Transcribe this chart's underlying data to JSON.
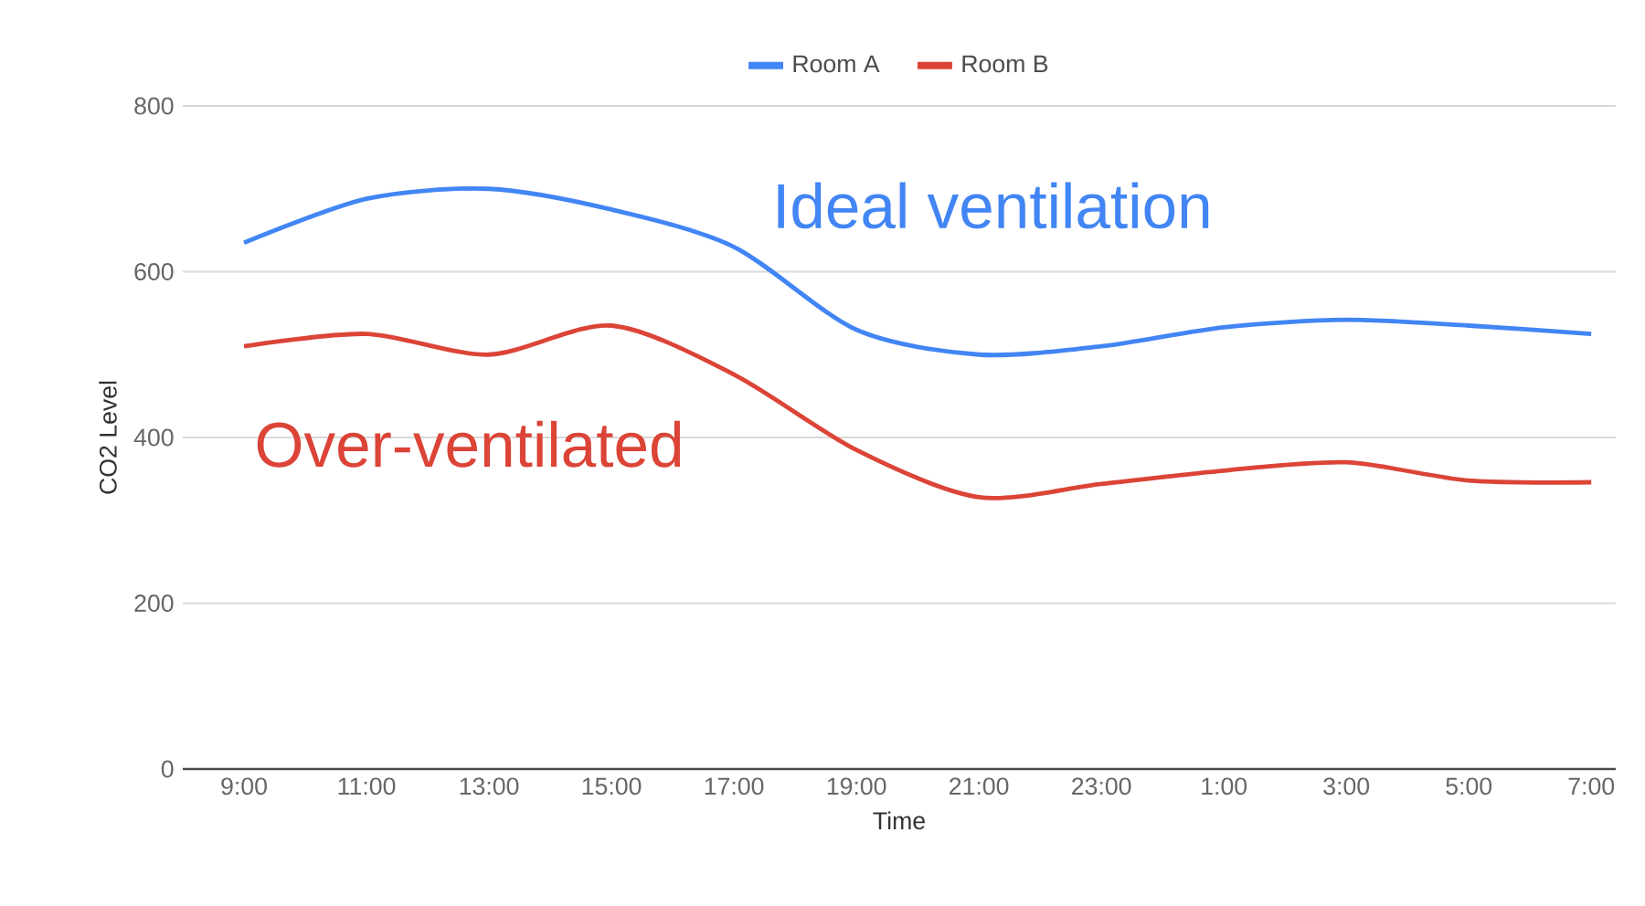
{
  "chart_data": {
    "type": "line",
    "xlabel": "Time",
    "ylabel": "CO2 Level",
    "categories": [
      "9:00",
      "11:00",
      "13:00",
      "15:00",
      "17:00",
      "19:00",
      "21:00",
      "23:00",
      "1:00",
      "3:00",
      "5:00",
      "7:00"
    ],
    "series": [
      {
        "name": "Room A",
        "color": "#4285f4",
        "values": [
          635,
          688,
          700,
          675,
          630,
          530,
          500,
          510,
          533,
          542,
          535,
          525
        ]
      },
      {
        "name": "Room B",
        "color": "#db4437",
        "values": [
          510,
          525,
          500,
          535,
          476,
          385,
          328,
          344,
          360,
          370,
          348,
          346
        ]
      }
    ],
    "annotations": [
      "Ideal ventilation",
      "Over-ventilated"
    ],
    "ylim": [
      0,
      800
    ],
    "yticks": [
      0,
      200,
      400,
      600,
      800
    ],
    "grid": "y",
    "legend": "top",
    "marker": "none",
    "line_style": "solid"
  }
}
